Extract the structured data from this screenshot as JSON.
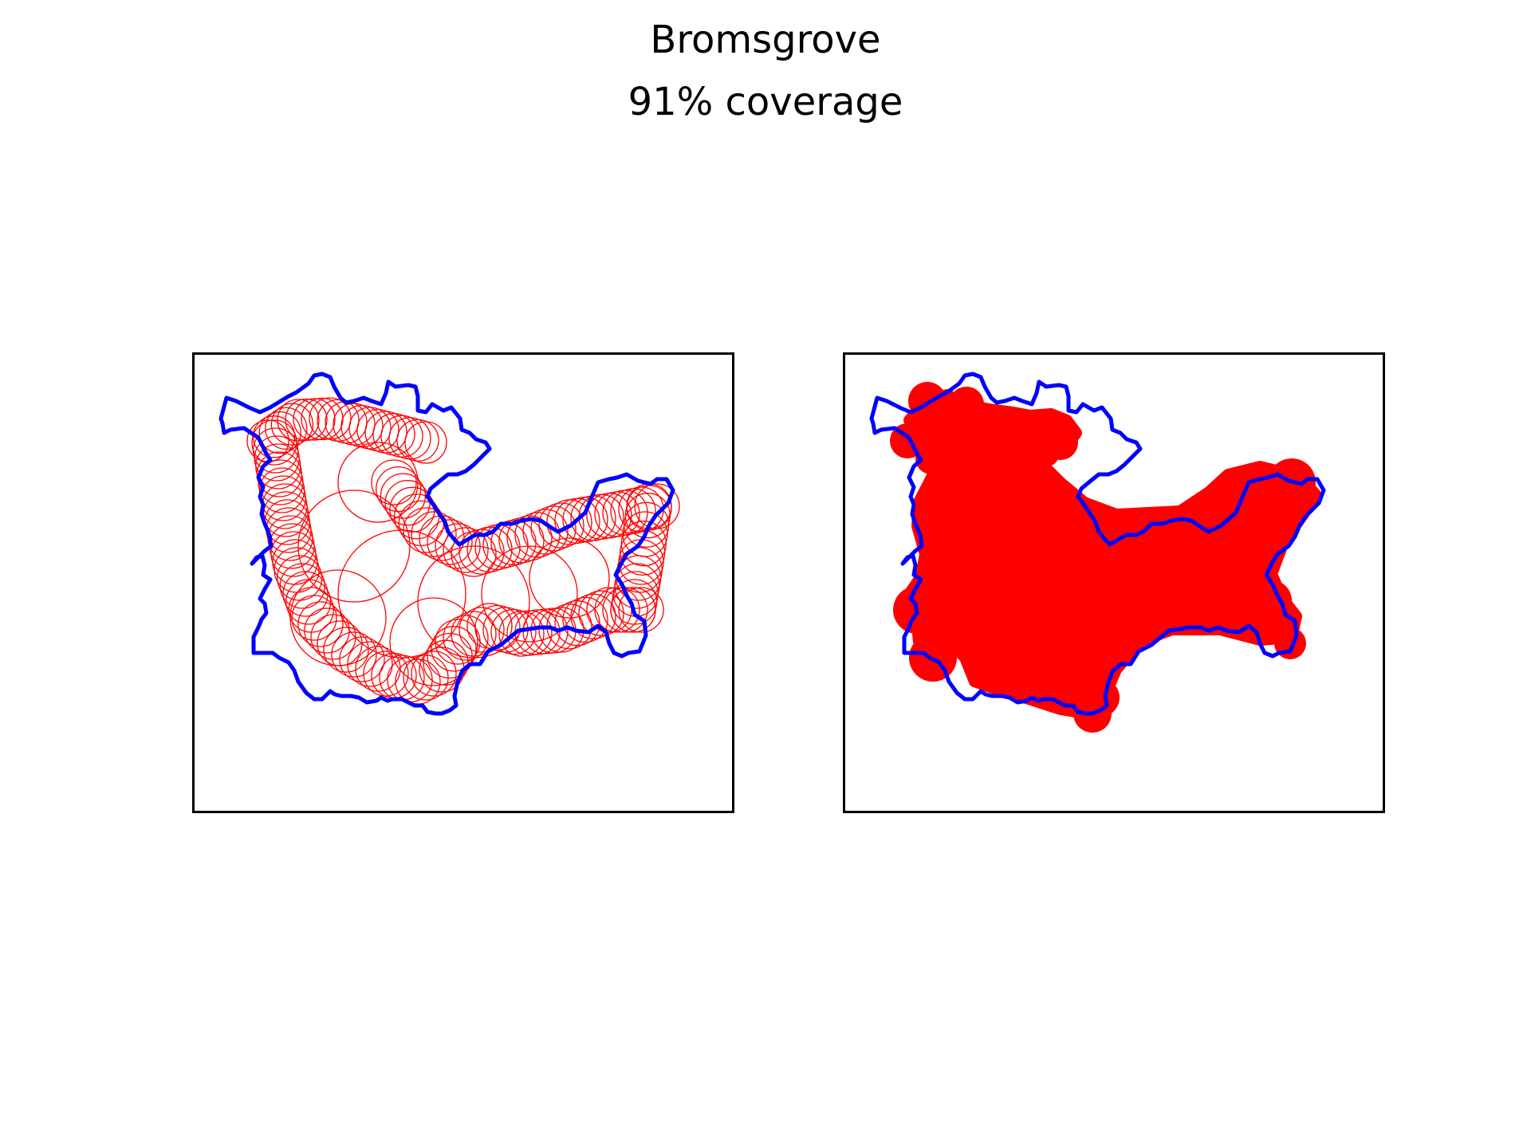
{
  "figure": {
    "title": "Bromsgrove",
    "subtitle": "91% coverage"
  },
  "colors": {
    "boundary": "#0000ff",
    "circles": "#ff0000",
    "frame": "#000000",
    "background": "#ffffff"
  },
  "panels": [
    {
      "id": "left",
      "style": "circle-outlines"
    },
    {
      "id": "right",
      "style": "filled-union"
    }
  ]
}
